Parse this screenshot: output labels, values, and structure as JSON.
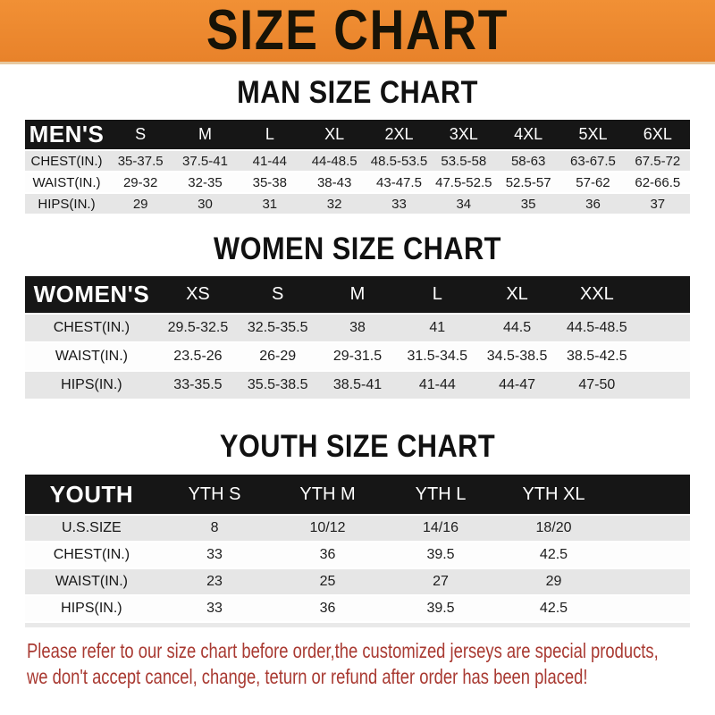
{
  "banner": {
    "title": "SIZE CHART"
  },
  "colors": {
    "banner_bg_top": "#F19035",
    "banner_bg_bottom": "#E8822A",
    "banner_text": "#171307",
    "table_header_bg": "#161616",
    "table_header_text": "#FFFFFF",
    "row_shaded_bg": "#E6E6E6",
    "footer_text": "#A93A32"
  },
  "sections": {
    "men": {
      "title": "MAN SIZE CHART",
      "table": {
        "header_label": "MEN'S",
        "columns": [
          "S",
          "M",
          "L",
          "XL",
          "2XL",
          "3XL",
          "4XL",
          "5XL",
          "6XL"
        ],
        "rows": [
          {
            "label": "CHEST(IN.)",
            "values": [
              "35-37.5",
              "37.5-41",
              "41-44",
              "44-48.5",
              "48.5-53.5",
              "53.5-58",
              "58-63",
              "63-67.5",
              "67.5-72"
            ]
          },
          {
            "label": "WAIST(IN.)",
            "values": [
              "29-32",
              "32-35",
              "35-38",
              "38-43",
              "43-47.5",
              "47.5-52.5",
              "52.5-57",
              "57-62",
              "62-66.5"
            ]
          },
          {
            "label": "HIPS(IN.)",
            "values": [
              "29",
              "30",
              "31",
              "32",
              "33",
              "34",
              "35",
              "36",
              "37"
            ]
          }
        ]
      }
    },
    "women": {
      "title": "WOMEN SIZE CHART",
      "table": {
        "header_label": "WOMEN'S",
        "columns": [
          "XS",
          "S",
          "M",
          "L",
          "XL",
          "XXL"
        ],
        "rows": [
          {
            "label": "CHEST(IN.)",
            "values": [
              "29.5-32.5",
              "32.5-35.5",
              "38",
              "41",
              "44.5",
              "44.5-48.5"
            ]
          },
          {
            "label": "WAIST(IN.)",
            "values": [
              "23.5-26",
              "26-29",
              "29-31.5",
              "31.5-34.5",
              "34.5-38.5",
              "38.5-42.5"
            ]
          },
          {
            "label": "HIPS(IN.)",
            "values": [
              "33-35.5",
              "35.5-38.5",
              "38.5-41",
              "41-44",
              "44-47",
              "47-50"
            ]
          }
        ]
      }
    },
    "youth": {
      "title": "YOUTH SIZE CHART",
      "table": {
        "header_label": "YOUTH",
        "columns": [
          "YTH S",
          "YTH M",
          "YTH L",
          "YTH XL"
        ],
        "rows": [
          {
            "label": "U.S.SIZE",
            "values": [
              "8",
              "10/12",
              "14/16",
              "18/20"
            ]
          },
          {
            "label": "CHEST(IN.)",
            "values": [
              "33",
              "36",
              "39.5",
              "42.5"
            ]
          },
          {
            "label": "WAIST(IN.)",
            "values": [
              "23",
              "25",
              "27",
              "29"
            ]
          },
          {
            "label": "HIPS(IN.)",
            "values": [
              "33",
              "36",
              "39.5",
              "42.5"
            ]
          }
        ]
      }
    }
  },
  "footer": {
    "line1": "Please refer to our size chart before order,the customized jerseys are special products,",
    "line2": "we don't accept cancel, change, teturn or refund after order has been placed!"
  }
}
